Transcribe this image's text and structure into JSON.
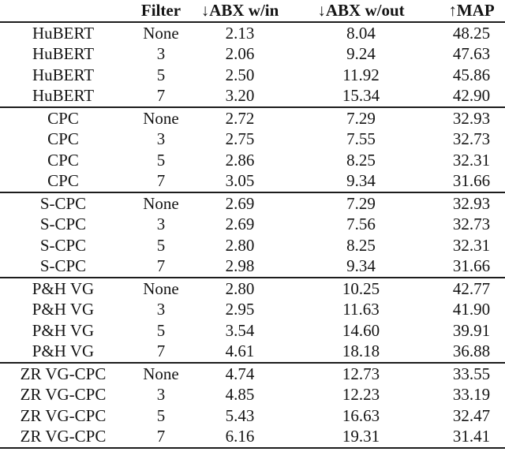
{
  "page": {
    "background": "#ffffff",
    "text_color": "#141414",
    "rule_color": "#1c1c1c"
  },
  "table": {
    "columns": [
      "",
      "Filter",
      "↓ABX w/in",
      "↓ABX w/out",
      "↑MAP"
    ],
    "column_keys": [
      "model",
      "filter",
      "abx_within",
      "abx_without",
      "map"
    ],
    "groups": [
      {
        "model": "HuBERT",
        "rows": [
          [
            "HuBERT",
            "None",
            "2.13",
            "8.04",
            "48.25"
          ],
          [
            "HuBERT",
            "3",
            "2.06",
            "9.24",
            "47.63"
          ],
          [
            "HuBERT",
            "5",
            "2.50",
            "11.92",
            "45.86"
          ],
          [
            "HuBERT",
            "7",
            "3.20",
            "15.34",
            "42.90"
          ]
        ]
      },
      {
        "model": "CPC",
        "rows": [
          [
            "CPC",
            "None",
            "2.72",
            "7.29",
            "32.93"
          ],
          [
            "CPC",
            "3",
            "2.75",
            "7.55",
            "32.73"
          ],
          [
            "CPC",
            "5",
            "2.86",
            "8.25",
            "32.31"
          ],
          [
            "CPC",
            "7",
            "3.05",
            "9.34",
            "31.66"
          ]
        ]
      },
      {
        "model": "S-CPC",
        "rows": [
          [
            "S-CPC",
            "None",
            "2.69",
            "7.29",
            "32.93"
          ],
          [
            "S-CPC",
            "3",
            "2.69",
            "7.56",
            "32.73"
          ],
          [
            "S-CPC",
            "5",
            "2.80",
            "8.25",
            "32.31"
          ],
          [
            "S-CPC",
            "7",
            "2.98",
            "9.34",
            "31.66"
          ]
        ]
      },
      {
        "model": "P&H VG",
        "rows": [
          [
            "P&H VG",
            "None",
            "2.80",
            "10.25",
            "42.77"
          ],
          [
            "P&H VG",
            "3",
            "2.95",
            "11.63",
            "41.90"
          ],
          [
            "P&H VG",
            "5",
            "3.54",
            "14.60",
            "39.91"
          ],
          [
            "P&H VG",
            "7",
            "4.61",
            "18.18",
            "36.88"
          ]
        ]
      },
      {
        "model": "ZR VG-CPC",
        "rows": [
          [
            "ZR VG-CPC",
            "None",
            "4.74",
            "12.73",
            "33.55"
          ],
          [
            "ZR VG-CPC",
            "3",
            "4.85",
            "12.23",
            "33.19"
          ],
          [
            "ZR VG-CPC",
            "5",
            "5.43",
            "16.63",
            "32.47"
          ],
          [
            "ZR VG-CPC",
            "7",
            "6.16",
            "19.31",
            "31.41"
          ]
        ]
      }
    ]
  }
}
